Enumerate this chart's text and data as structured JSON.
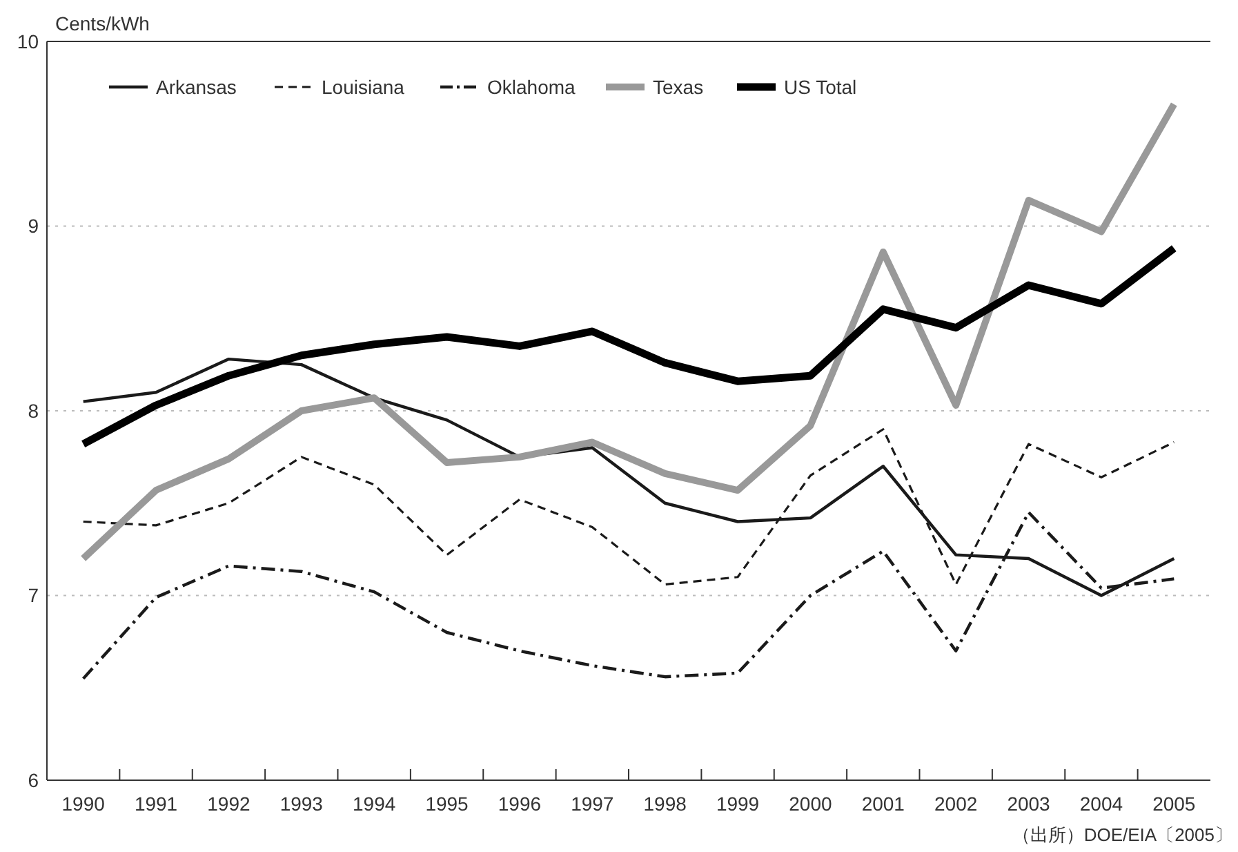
{
  "chart_data": {
    "type": "line",
    "ylabel": "Cents/kWh",
    "categories": [
      "1990",
      "1991",
      "1992",
      "1993",
      "1994",
      "1995",
      "1996",
      "1997",
      "1998",
      "1999",
      "2000",
      "2001",
      "2002",
      "2003",
      "2004",
      "2005"
    ],
    "series": [
      {
        "name": "Arkansas",
        "color": "#1a1a1a",
        "line_style": "solid",
        "values": [
          8.05,
          8.1,
          8.28,
          8.25,
          8.07,
          7.95,
          7.75,
          7.8,
          7.5,
          7.4,
          7.42,
          7.7,
          7.22,
          7.2,
          7.0,
          7.2
        ]
      },
      {
        "name": "Louisiana",
        "color": "#1a1a1a",
        "line_style": "dashed",
        "values": [
          7.4,
          7.38,
          7.5,
          7.75,
          7.6,
          7.22,
          7.52,
          7.37,
          7.06,
          7.1,
          7.65,
          7.9,
          7.06,
          7.82,
          7.64,
          7.83
        ]
      },
      {
        "name": "Oklahoma",
        "color": "#1a1a1a",
        "line_style": "dashdot",
        "values": [
          6.55,
          6.99,
          7.16,
          7.13,
          7.02,
          6.8,
          6.7,
          6.62,
          6.56,
          6.58,
          7.0,
          7.24,
          6.7,
          7.45,
          7.04,
          7.09
        ]
      },
      {
        "name": "Texas",
        "color": "#999999",
        "line_style": "solid",
        "values": [
          7.2,
          7.57,
          7.74,
          8.0,
          8.07,
          7.72,
          7.75,
          7.83,
          7.66,
          7.57,
          7.92,
          8.86,
          8.03,
          9.14,
          8.97,
          9.66
        ]
      },
      {
        "name": "US Total",
        "color": "#000000",
        "line_style": "solid",
        "values": [
          7.82,
          8.03,
          8.19,
          8.3,
          8.36,
          8.4,
          8.35,
          8.43,
          8.26,
          8.16,
          8.19,
          8.55,
          8.45,
          8.68,
          8.58,
          8.88
        ]
      }
    ],
    "ylim": [
      6,
      10
    ],
    "yticks": [
      6,
      7,
      8,
      9,
      10
    ],
    "grid": "y",
    "legend": "top left",
    "marker": "none",
    "annotations": [
      "（出所）DOE/EIA〔2005〕"
    ]
  }
}
